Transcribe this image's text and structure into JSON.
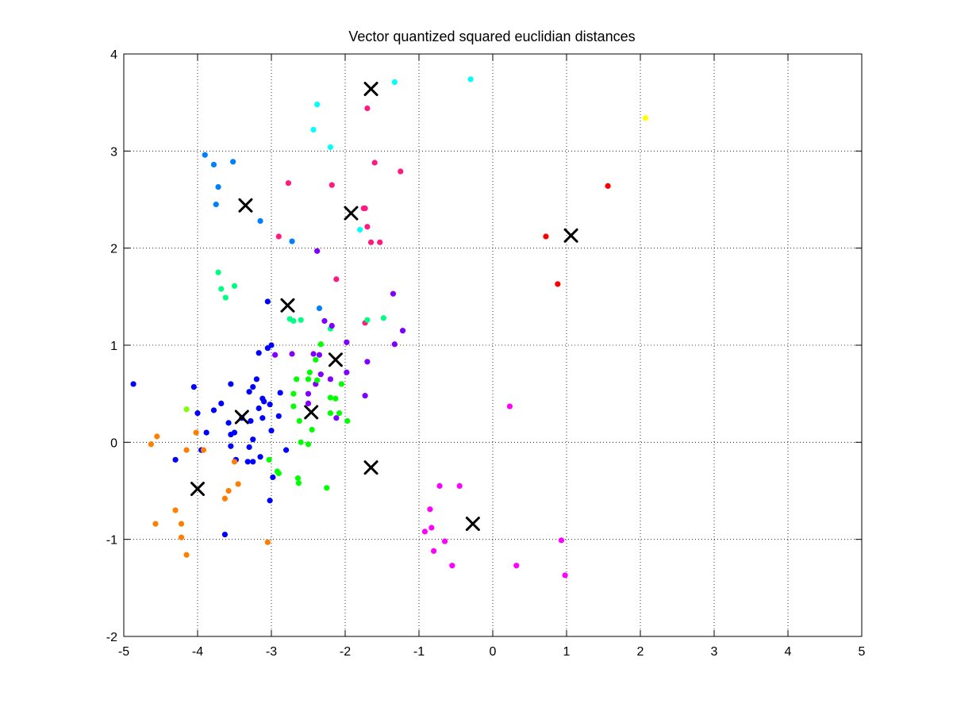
{
  "chart_data": {
    "type": "scatter",
    "title": "Vector quantized squared euclidian distances",
    "xlabel": "",
    "ylabel": "",
    "xlim": [
      -5,
      5
    ],
    "ylim": [
      -2,
      4
    ],
    "xticks": [
      "-5",
      "-4",
      "-3",
      "-2",
      "-1",
      "0",
      "1",
      "2",
      "3",
      "4",
      "5"
    ],
    "yticks": [
      "-2",
      "-1",
      "0",
      "1",
      "2",
      "3",
      "4"
    ],
    "grid": true,
    "grid_style": "dotted",
    "series": [
      {
        "color": "#ff0000",
        "points": [
          [
            0.72,
            2.12
          ],
          [
            0.88,
            1.63
          ],
          [
            1.56,
            2.64
          ]
        ]
      },
      {
        "color": "#ffff00",
        "points": [
          [
            2.07,
            3.34
          ]
        ]
      },
      {
        "color": "#00ffff",
        "points": [
          [
            -2.43,
            3.22
          ],
          [
            -2.38,
            3.48
          ],
          [
            -2.2,
            3.04
          ],
          [
            -1.33,
            3.71
          ],
          [
            -0.3,
            3.74
          ],
          [
            -1.8,
            2.19
          ]
        ]
      },
      {
        "color": "#ff1a80",
        "points": [
          [
            -1.7,
            3.44
          ],
          [
            -1.6,
            2.88
          ],
          [
            -1.25,
            2.79
          ],
          [
            -2.77,
            2.67
          ],
          [
            -2.18,
            2.65
          ],
          [
            -1.75,
            2.41
          ],
          [
            -1.73,
            2.41
          ],
          [
            -1.7,
            2.22
          ],
          [
            -1.65,
            2.06
          ],
          [
            -1.53,
            2.06
          ],
          [
            -2.9,
            2.12
          ],
          [
            -2.12,
            1.68
          ],
          [
            -1.73,
            1.23
          ]
        ]
      },
      {
        "color": "#0080ff",
        "points": [
          [
            -3.9,
            2.96
          ],
          [
            -3.78,
            2.86
          ],
          [
            -3.52,
            2.89
          ],
          [
            -3.72,
            2.63
          ],
          [
            -3.75,
            2.45
          ],
          [
            -3.15,
            2.28
          ],
          [
            -2.72,
            2.07
          ],
          [
            -2.35,
            1.38
          ]
        ]
      },
      {
        "color": "#00ff80",
        "points": [
          [
            -3.72,
            1.75
          ],
          [
            -3.68,
            1.58
          ],
          [
            -3.5,
            1.61
          ],
          [
            -3.62,
            1.49
          ],
          [
            -2.75,
            1.27
          ],
          [
            -2.7,
            1.25
          ],
          [
            -2.6,
            1.26
          ],
          [
            -1.7,
            1.26
          ],
          [
            -1.48,
            1.28
          ],
          [
            -2.2,
            1.17
          ]
        ]
      },
      {
        "color": "#8000ff",
        "points": [
          [
            -2.38,
            1.97
          ],
          [
            -1.35,
            1.53
          ],
          [
            -1.22,
            1.15
          ],
          [
            -1.33,
            1.01
          ],
          [
            -2.28,
            1.25
          ],
          [
            -2.18,
            1.2
          ],
          [
            -2.72,
            0.91
          ],
          [
            -2.95,
            0.9
          ],
          [
            -1.98,
            1.03
          ],
          [
            -2.43,
            0.91
          ],
          [
            -2.35,
            0.9
          ],
          [
            -2.33,
            0.7
          ],
          [
            -2.2,
            0.65
          ],
          [
            -1.7,
            0.83
          ],
          [
            -1.98,
            0.72
          ],
          [
            -2.4,
            0.6
          ],
          [
            -2.5,
            0.5
          ],
          [
            -2.5,
            0.4
          ],
          [
            -1.73,
            0.48
          ],
          [
            -2.12,
            0.25
          ]
        ]
      },
      {
        "color": "#00ff00",
        "points": [
          [
            -2.33,
            1.01
          ],
          [
            -2.4,
            0.85
          ],
          [
            -2.48,
            0.72
          ],
          [
            -2.38,
            0.64
          ],
          [
            -2.5,
            0.65
          ],
          [
            -2.66,
            0.65
          ],
          [
            -2.7,
            0.5
          ],
          [
            -2.2,
            0.46
          ],
          [
            -2.13,
            0.45
          ],
          [
            -2.05,
            0.6
          ],
          [
            -2.08,
            0.3
          ],
          [
            -2.2,
            0.3
          ],
          [
            -1.97,
            0.22
          ],
          [
            -2.7,
            0.37
          ],
          [
            -2.62,
            0.22
          ],
          [
            -2.45,
            0.13
          ],
          [
            -2.6,
            0.0
          ],
          [
            -2.5,
            -0.02
          ],
          [
            -3.03,
            -0.18
          ],
          [
            -2.92,
            -0.3
          ],
          [
            -2.9,
            -0.32
          ],
          [
            -2.64,
            -0.37
          ],
          [
            -2.63,
            -0.42
          ],
          [
            -2.25,
            -0.47
          ]
        ]
      },
      {
        "color": "#0000ff",
        "points": [
          [
            -4.87,
            0.6
          ],
          [
            -4.05,
            0.57
          ],
          [
            -4.0,
            0.3
          ],
          [
            -3.88,
            0.1
          ],
          [
            -3.95,
            -0.08
          ],
          [
            -4.3,
            -0.18
          ],
          [
            -3.78,
            0.33
          ],
          [
            -3.68,
            0.4
          ],
          [
            -3.55,
            0.6
          ],
          [
            -3.58,
            0.2
          ],
          [
            -3.55,
            0.08
          ],
          [
            -3.5,
            0.1
          ],
          [
            -3.4,
            0.25
          ],
          [
            -3.3,
            0.52
          ],
          [
            -3.25,
            0.57
          ],
          [
            -3.2,
            0.65
          ],
          [
            -3.17,
            0.35
          ],
          [
            -3.12,
            0.45
          ],
          [
            -3.1,
            0.42
          ],
          [
            -3.05,
            0.97
          ],
          [
            -3.0,
            1.0
          ],
          [
            -3.17,
            0.92
          ],
          [
            -3.05,
            1.45
          ],
          [
            -2.88,
            0.51
          ],
          [
            -2.9,
            0.27
          ],
          [
            -3.02,
            0.39
          ],
          [
            -3.12,
            0.25
          ],
          [
            -3.0,
            0.12
          ],
          [
            -3.28,
            0.22
          ],
          [
            -3.25,
            0.03
          ],
          [
            -3.3,
            -0.05
          ],
          [
            -3.15,
            -0.15
          ],
          [
            -3.32,
            -0.2
          ],
          [
            -3.25,
            -0.2
          ],
          [
            -3.55,
            -0.04
          ],
          [
            -3.48,
            -0.18
          ],
          [
            -2.98,
            -0.36
          ],
          [
            -3.02,
            -0.6
          ],
          [
            -2.8,
            -0.08
          ],
          [
            -3.63,
            -0.95
          ]
        ]
      },
      {
        "color": "#80ff00",
        "points": [
          [
            -4.15,
            0.34
          ]
        ]
      },
      {
        "color": "#ff8000",
        "points": [
          [
            -4.02,
            0.1
          ],
          [
            -4.55,
            0.06
          ],
          [
            -4.63,
            -0.02
          ],
          [
            -4.15,
            -0.08
          ],
          [
            -3.92,
            -0.08
          ],
          [
            -3.5,
            -0.2
          ],
          [
            -3.45,
            -0.43
          ],
          [
            -3.58,
            -0.5
          ],
          [
            -3.63,
            -0.58
          ],
          [
            -4.3,
            -0.7
          ],
          [
            -4.57,
            -0.84
          ],
          [
            -4.22,
            -0.84
          ],
          [
            -4.22,
            -0.98
          ],
          [
            -4.15,
            -1.16
          ],
          [
            -3.05,
            -1.03
          ]
        ]
      },
      {
        "color": "#ff00ff",
        "points": [
          [
            0.23,
            0.37
          ],
          [
            -0.72,
            -0.45
          ],
          [
            -0.45,
            -0.45
          ],
          [
            -0.85,
            -0.69
          ],
          [
            -0.83,
            -0.88
          ],
          [
            -0.92,
            -0.92
          ],
          [
            -0.65,
            -1.02
          ],
          [
            -0.8,
            -1.12
          ],
          [
            -0.55,
            -1.27
          ],
          [
            0.32,
            -1.27
          ],
          [
            0.93,
            -1.01
          ],
          [
            0.98,
            -1.37
          ]
        ]
      }
    ],
    "centroids": {
      "marker": "x",
      "color": "#000000",
      "points": [
        [
          -1.65,
          3.64
        ],
        [
          -3.35,
          2.44
        ],
        [
          -1.92,
          2.36
        ],
        [
          1.06,
          2.13
        ],
        [
          -2.78,
          1.41
        ],
        [
          -2.13,
          0.85
        ],
        [
          -2.46,
          0.31
        ],
        [
          -3.4,
          0.26
        ],
        [
          -4.0,
          -0.48
        ],
        [
          -1.65,
          -0.26
        ],
        [
          -0.27,
          -0.84
        ]
      ]
    }
  }
}
